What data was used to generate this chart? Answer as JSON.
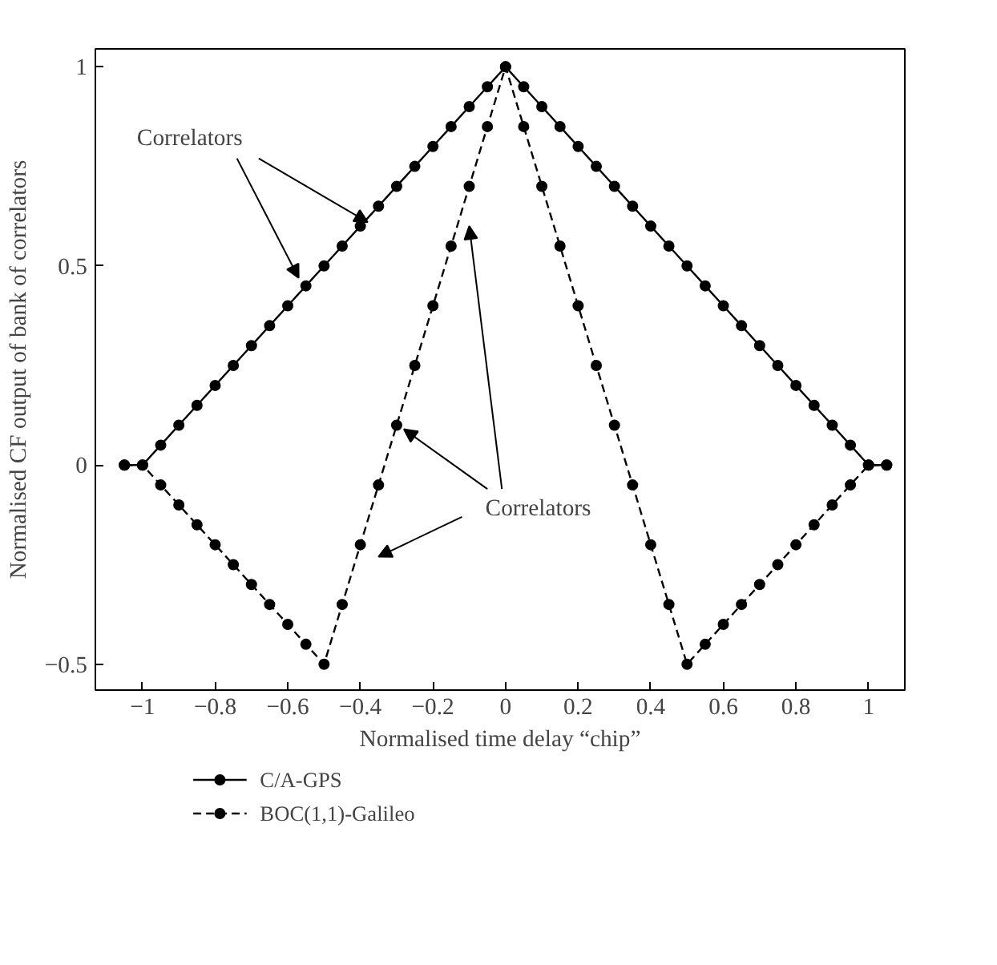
{
  "chart_data": {
    "type": "line",
    "xlabel": "Normalised time delay “chip”",
    "ylabel": "Normalised CF output of bank of correlators",
    "x": [
      -1.05,
      -1.0,
      -0.95,
      -0.9,
      -0.85,
      -0.8,
      -0.75,
      -0.7,
      -0.65,
      -0.6,
      -0.55,
      -0.5,
      -0.45,
      -0.4,
      -0.35,
      -0.3,
      -0.25,
      -0.2,
      -0.15,
      -0.1,
      -0.05,
      0.0,
      0.05,
      0.1,
      0.15,
      0.2,
      0.25,
      0.3,
      0.35,
      0.4,
      0.45,
      0.5,
      0.55,
      0.6,
      0.65,
      0.7,
      0.75,
      0.8,
      0.85,
      0.9,
      0.95,
      1.0,
      1.05
    ],
    "series": [
      {
        "name": "C/A-GPS",
        "color": "#000000",
        "line_style": "solid",
        "values": [
          0,
          0,
          0.05,
          0.1,
          0.15,
          0.2,
          0.25,
          0.3,
          0.35,
          0.4,
          0.45,
          0.5,
          0.55,
          0.6,
          0.65,
          0.7,
          0.75,
          0.8,
          0.85,
          0.9,
          0.95,
          1,
          0.95,
          0.9,
          0.85,
          0.8,
          0.75,
          0.7,
          0.65,
          0.6,
          0.55,
          0.5,
          0.45,
          0.4,
          0.35,
          0.3,
          0.25,
          0.2,
          0.15,
          0.1,
          0.05,
          0,
          0
        ]
      },
      {
        "name": "BOC(1,1)-Galileo",
        "color": "#000000",
        "line_style": "dashed",
        "values": [
          0,
          0,
          -0.05,
          -0.1,
          -0.15,
          -0.2,
          -0.25,
          -0.3,
          -0.35,
          -0.4,
          -0.45,
          -0.5,
          -0.35,
          -0.2,
          -0.05,
          0.1,
          0.25,
          0.4,
          0.55,
          0.7,
          0.85,
          1,
          0.85,
          0.7,
          0.55,
          0.4,
          0.25,
          0.1,
          -0.05,
          -0.2,
          -0.35,
          -0.5,
          -0.45,
          -0.4,
          -0.35,
          -0.3,
          -0.25,
          -0.2,
          -0.15,
          -0.1,
          -0.05,
          0,
          0
        ]
      }
    ],
    "xlim": [
      -1.13,
      1.1
    ],
    "xticks": [
      {
        "value": -1,
        "label": "−1"
      },
      {
        "value": -0.8,
        "label": "−0.8"
      },
      {
        "value": -0.6,
        "label": "−0.6"
      },
      {
        "value": -0.4,
        "label": "−0.4"
      },
      {
        "value": -0.2,
        "label": "−0.2"
      },
      0,
      0.2,
      0.4,
      0.6,
      0.8,
      1
    ],
    "ylim": [
      -0.565,
      1.045
    ],
    "yticks": [
      {
        "value": -0.5,
        "label": "−0.5"
      },
      0,
      0.5,
      1
    ],
    "marker": "circle",
    "grid": false,
    "legend": "bottom",
    "annotations": [
      {
        "text": "Correlators",
        "x": -0.4,
        "y": 0.6
      },
      {
        "text": "Correlators",
        "x": -0.3,
        "y": 0.1
      }
    ]
  }
}
